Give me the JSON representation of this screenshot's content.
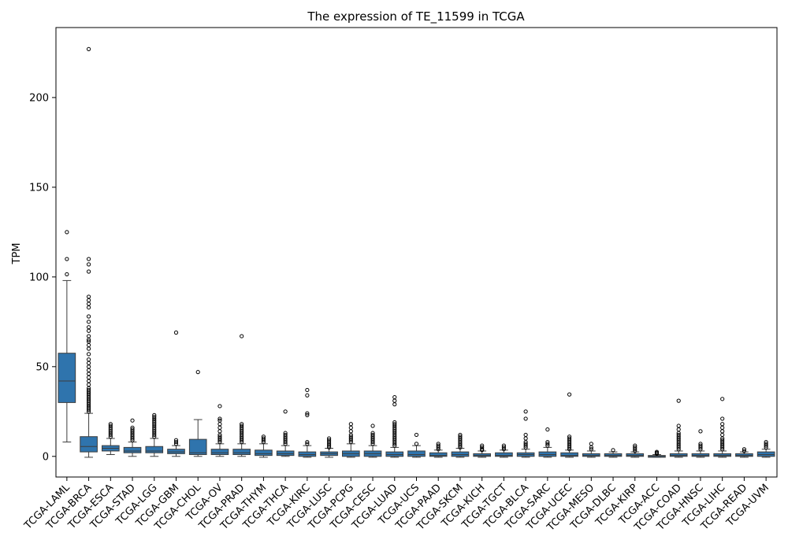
{
  "chart_data": {
    "type": "box",
    "title": "The expression of TE_11599 in TCGA",
    "xlabel": "",
    "ylabel": "TPM",
    "ylim": [
      -11.5,
      239
    ],
    "yticks": [
      0,
      50,
      100,
      150,
      200
    ],
    "grid": false,
    "box_color": "#2f74ad",
    "categories": [
      "TCGA-LAML",
      "TCGA-BRCA",
      "TCGA-ESCA",
      "TCGA-STAD",
      "TCGA-LGG",
      "TCGA-GBM",
      "TCGA-CHOL",
      "TCGA-OV",
      "TCGA-PRAD",
      "TCGA-THYM",
      "TCGA-THCA",
      "TCGA-KIRC",
      "TCGA-LUSC",
      "TCGA-PCPG",
      "TCGA-CESC",
      "TCGA-LUAD",
      "TCGA-UCS",
      "TCGA-PAAD",
      "TCGA-SKCM",
      "TCGA-KICH",
      "TCGA-TGCT",
      "TCGA-BLCA",
      "TCGA-SARC",
      "TCGA-UCEC",
      "TCGA-MESO",
      "TCGA-DLBC",
      "TCGA-KIRP",
      "TCGA-ACC",
      "TCGA-COAD",
      "TCGA-HNSC",
      "TCGA-LIHC",
      "TCGA-READ",
      "TCGA-UVM"
    ],
    "boxes": [
      {
        "whislo": 8,
        "q1": 30,
        "med": 42,
        "q3": 57.5,
        "whishi": 98,
        "fliers": [
          101.5,
          110,
          125
        ]
      },
      {
        "whislo": -0.5,
        "q1": 2.5,
        "med": 5.5,
        "q3": 11,
        "whishi": 24,
        "fliers": [
          25,
          26,
          27,
          28,
          29,
          30,
          31,
          32,
          33,
          34,
          35,
          36,
          37,
          38,
          40,
          42,
          44,
          46,
          48,
          50,
          52,
          54,
          57,
          60,
          62,
          64,
          65,
          67,
          70,
          72,
          75,
          78,
          83,
          85,
          87,
          89,
          103,
          107,
          110,
          227
        ]
      },
      {
        "whislo": 1,
        "q1": 3,
        "med": 4.5,
        "q3": 6,
        "whishi": 10,
        "fliers": [
          11,
          12,
          13,
          14,
          15,
          16,
          17,
          18
        ]
      },
      {
        "whislo": 0,
        "q1": 2,
        "med": 3,
        "q3": 5,
        "whishi": 8,
        "fliers": [
          9,
          10,
          11,
          12,
          13,
          14,
          15,
          16,
          20
        ]
      },
      {
        "whislo": 0,
        "q1": 2,
        "med": 3,
        "q3": 5.5,
        "whishi": 10,
        "fliers": [
          11,
          12,
          13,
          14,
          15,
          16,
          17,
          18,
          19,
          20,
          21,
          22,
          23
        ]
      },
      {
        "whislo": 0,
        "q1": 1.5,
        "med": 2.5,
        "q3": 4,
        "whishi": 6,
        "fliers": [
          7,
          8,
          9,
          69
        ]
      },
      {
        "whislo": 0,
        "q1": 1,
        "med": 2,
        "q3": 9.5,
        "whishi": 20.5,
        "fliers": [
          47
        ]
      },
      {
        "whislo": 0,
        "q1": 1,
        "med": 2,
        "q3": 4,
        "whishi": 7,
        "fliers": [
          8,
          9,
          10,
          11,
          12,
          14,
          16,
          18,
          20,
          21,
          28
        ]
      },
      {
        "whislo": 0,
        "q1": 1,
        "med": 2,
        "q3": 4,
        "whishi": 7,
        "fliers": [
          8,
          9,
          10,
          11,
          12,
          13,
          14,
          15,
          16,
          17,
          18,
          67
        ]
      },
      {
        "whislo": -0.5,
        "q1": 0.5,
        "med": 1.5,
        "q3": 3.5,
        "whishi": 7,
        "fliers": [
          8,
          9,
          10,
          11
        ]
      },
      {
        "whislo": 0,
        "q1": 0.5,
        "med": 1.5,
        "q3": 3,
        "whishi": 6,
        "fliers": [
          7,
          8,
          9,
          10,
          11,
          12,
          13,
          25
        ]
      },
      {
        "whislo": -0.5,
        "q1": 0,
        "med": 1,
        "q3": 2.5,
        "whishi": 6,
        "fliers": [
          7,
          8,
          23,
          24,
          34,
          37
        ]
      },
      {
        "whislo": -0.5,
        "q1": 0.5,
        "med": 1.5,
        "q3": 2.5,
        "whishi": 4.5,
        "fliers": [
          5,
          6,
          7,
          8,
          9,
          10
        ]
      },
      {
        "whislo": -0.5,
        "q1": 0,
        "med": 1.5,
        "q3": 3,
        "whishi": 7,
        "fliers": [
          8,
          9,
          10,
          11,
          12,
          14,
          16,
          18
        ]
      },
      {
        "whislo": -0.5,
        "q1": 0,
        "med": 1.5,
        "q3": 3,
        "whishi": 6,
        "fliers": [
          7,
          8,
          9,
          10,
          11,
          12,
          13,
          17
        ]
      },
      {
        "whislo": -0.5,
        "q1": 0,
        "med": 1,
        "q3": 2.5,
        "whishi": 5,
        "fliers": [
          6,
          7,
          8,
          9,
          10,
          11,
          12,
          13,
          14,
          15,
          16,
          17,
          18,
          19,
          29,
          31,
          33
        ]
      },
      {
        "whislo": -0.5,
        "q1": 0,
        "med": 1,
        "q3": 3,
        "whishi": 6,
        "fliers": [
          7,
          12
        ]
      },
      {
        "whislo": -0.5,
        "q1": 0,
        "med": 0.5,
        "q3": 2,
        "whishi": 3.5,
        "fliers": [
          4,
          5,
          6,
          7
        ]
      },
      {
        "whislo": -0.5,
        "q1": 0,
        "med": 1,
        "q3": 2.5,
        "whishi": 4.5,
        "fliers": [
          5,
          6,
          7,
          8,
          9,
          10,
          11,
          12
        ]
      },
      {
        "whislo": -0.5,
        "q1": 0,
        "med": 0.5,
        "q3": 1.5,
        "whishi": 3,
        "fliers": [
          3.5,
          4,
          5,
          6
        ]
      },
      {
        "whislo": -0.5,
        "q1": 0,
        "med": 0.5,
        "q3": 2,
        "whishi": 3.5,
        "fliers": [
          4,
          5,
          6
        ]
      },
      {
        "whislo": -0.5,
        "q1": 0,
        "med": 1,
        "q3": 2,
        "whishi": 4,
        "fliers": [
          5,
          6,
          7,
          8,
          10,
          12,
          21,
          25
        ]
      },
      {
        "whislo": -0.5,
        "q1": 0,
        "med": 1,
        "q3": 2.5,
        "whishi": 5,
        "fliers": [
          6,
          7,
          8,
          15
        ]
      },
      {
        "whislo": -0.5,
        "q1": 0,
        "med": 0.5,
        "q3": 2,
        "whishi": 3.5,
        "fliers": [
          4,
          5,
          6,
          7,
          8,
          9,
          10,
          11,
          34.5
        ]
      },
      {
        "whislo": -0.5,
        "q1": 0,
        "med": 0.5,
        "q3": 1.5,
        "whishi": 3,
        "fliers": [
          4,
          5,
          7
        ]
      },
      {
        "whislo": -0.5,
        "q1": 0,
        "med": 0.5,
        "q3": 1.5,
        "whishi": 2.5,
        "fliers": [
          3.5
        ]
      },
      {
        "whislo": -0.5,
        "q1": 0,
        "med": 0.5,
        "q3": 1.5,
        "whishi": 2.5,
        "fliers": [
          3,
          4,
          5,
          6
        ]
      },
      {
        "whislo": -0.5,
        "q1": -0.5,
        "med": 0,
        "q3": 0.5,
        "whishi": 1,
        "fliers": [
          1.5,
          2,
          2.5
        ]
      },
      {
        "whislo": -0.5,
        "q1": 0,
        "med": 0.5,
        "q3": 1.5,
        "whishi": 3,
        "fliers": [
          4,
          5,
          6,
          7,
          8,
          9,
          10,
          11,
          12,
          13,
          15,
          17,
          31
        ]
      },
      {
        "whislo": -0.5,
        "q1": 0,
        "med": 0.5,
        "q3": 1.5,
        "whishi": 3,
        "fliers": [
          4,
          5,
          6,
          7,
          14
        ]
      },
      {
        "whislo": -0.5,
        "q1": 0,
        "med": 0.5,
        "q3": 1.5,
        "whishi": 3,
        "fliers": [
          4,
          5,
          6,
          7,
          8,
          9,
          10,
          12,
          14,
          16,
          18,
          21,
          32
        ]
      },
      {
        "whislo": -0.5,
        "q1": 0,
        "med": 0.5,
        "q3": 1.5,
        "whishi": 2.5,
        "fliers": [
          3,
          4
        ]
      },
      {
        "whislo": -0.5,
        "q1": 0,
        "med": 1,
        "q3": 2.5,
        "whishi": 4,
        "fliers": [
          5,
          6,
          7,
          8
        ]
      }
    ]
  }
}
